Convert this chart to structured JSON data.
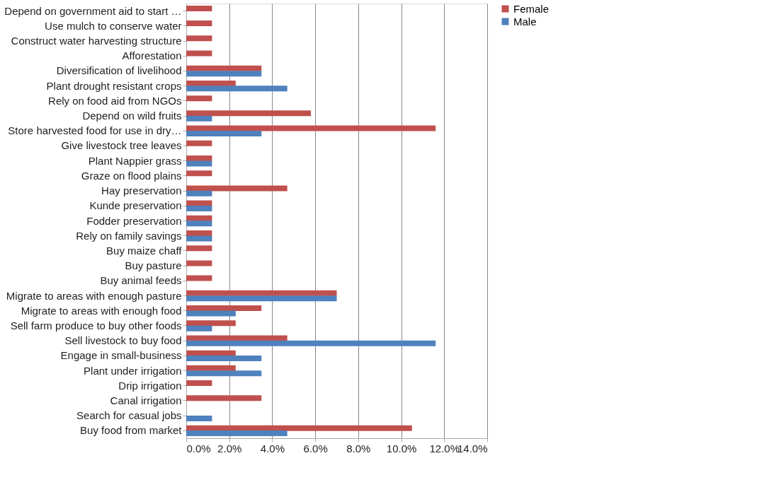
{
  "chart_data": {
    "type": "bar",
    "orientation": "horizontal",
    "categories": [
      "Depend on government aid to start …",
      "Use mulch to conserve water",
      "Construct water harvesting structure",
      "Afforestation",
      "Diversification of livelihood",
      "Plant drought resistant crops",
      "Rely on food aid from NGOs",
      "Depend on wild fruits",
      "Store harvested food for use in dry…",
      "Give livestock tree leaves",
      "Plant Nappier grass",
      "Graze on flood plains",
      "Hay preservation",
      "Kunde preservation",
      "Fodder preservation",
      "Rely on family savings",
      "Buy maize chaff",
      "Buy pasture",
      "Buy animal feeds",
      "Migrate to areas with enough pasture",
      "Migrate to areas with enough food",
      "Sell farm produce to buy other foods",
      "Sell livestock to buy food",
      "Engage in small-business",
      "Plant under irrigation",
      "Drip irrigation",
      "Canal irrigation",
      "Search for casual jobs",
      "Buy food from market"
    ],
    "series": [
      {
        "name": "Female",
        "color": "#c0504d",
        "values": [
          1.2,
          1.2,
          1.2,
          1.2,
          3.5,
          2.3,
          1.2,
          5.8,
          11.6,
          1.2,
          1.2,
          1.2,
          4.7,
          1.2,
          1.2,
          1.2,
          1.2,
          1.2,
          1.2,
          7.0,
          3.5,
          2.3,
          4.7,
          2.3,
          2.3,
          1.2,
          3.5,
          null,
          10.5
        ]
      },
      {
        "name": "Male",
        "color": "#4f81bd",
        "values": [
          null,
          null,
          null,
          null,
          3.5,
          4.7,
          null,
          1.2,
          3.5,
          null,
          1.2,
          null,
          1.2,
          1.2,
          1.2,
          1.2,
          null,
          null,
          null,
          7.0,
          2.3,
          1.2,
          11.6,
          3.5,
          3.5,
          null,
          null,
          1.2,
          4.7
        ]
      }
    ],
    "xlim": [
      0,
      14
    ],
    "xticks": [
      {
        "value": 0,
        "label": "0.0%"
      },
      {
        "value": 2,
        "label": "2.0%"
      },
      {
        "value": 4,
        "label": "4.0%"
      },
      {
        "value": 6,
        "label": "6.0%"
      },
      {
        "value": 8,
        "label": "8.0%"
      },
      {
        "value": 10,
        "label": "10.0%"
      },
      {
        "value": 12,
        "label": "12.0%"
      },
      {
        "value": 14,
        "label": "14.0%"
      }
    ],
    "grid": "x",
    "legend": "right"
  }
}
